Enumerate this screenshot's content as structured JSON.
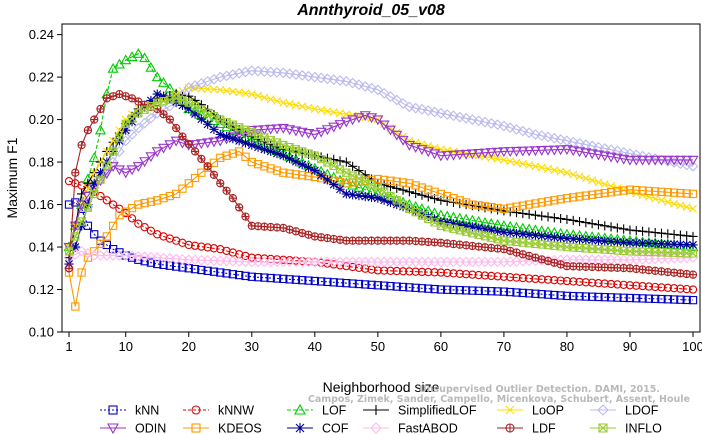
{
  "chart_data": {
    "type": "line",
    "title": "Annthyroid_05_v08",
    "xlabel": "Neighborhood size",
    "ylabel": "Maximum F1",
    "xlim": [
      1,
      100
    ],
    "ylim": [
      0.1,
      0.245
    ],
    "xticks": [
      1,
      10,
      20,
      30,
      40,
      50,
      60,
      70,
      80,
      90,
      100
    ],
    "yticks": [
      0.1,
      0.12,
      0.14,
      0.16,
      0.18,
      0.2,
      0.22,
      0.24
    ],
    "ytick_labels": [
      "0.10",
      "0.12",
      "0.14",
      "0.16",
      "0.18",
      "0.20",
      "0.22",
      "0.24"
    ],
    "grid": false,
    "legend_position": "bottom",
    "series": [
      {
        "name": "kNN",
        "color": "#0000cc",
        "marker": "square",
        "dash": "2,2",
        "points": [
          [
            1,
            0.16
          ],
          [
            2,
            0.161
          ],
          [
            3,
            0.158
          ],
          [
            4,
            0.15
          ],
          [
            5,
            0.146
          ],
          [
            6,
            0.143
          ],
          [
            8,
            0.139
          ],
          [
            10,
            0.136
          ],
          [
            12,
            0.134
          ],
          [
            15,
            0.132
          ],
          [
            20,
            0.13
          ],
          [
            25,
            0.128
          ],
          [
            30,
            0.126
          ],
          [
            40,
            0.124
          ],
          [
            50,
            0.122
          ],
          [
            60,
            0.12
          ],
          [
            70,
            0.119
          ],
          [
            80,
            0.117
          ],
          [
            90,
            0.116
          ],
          [
            100,
            0.115
          ]
        ]
      },
      {
        "name": "kNNW",
        "color": "#dd0000",
        "marker": "circle",
        "dash": "3,2",
        "points": [
          [
            1,
            0.171
          ],
          [
            2,
            0.17
          ],
          [
            3,
            0.169
          ],
          [
            5,
            0.166
          ],
          [
            7,
            0.162
          ],
          [
            10,
            0.156
          ],
          [
            12,
            0.151
          ],
          [
            15,
            0.146
          ],
          [
            20,
            0.141
          ],
          [
            25,
            0.139
          ],
          [
            30,
            0.135
          ],
          [
            40,
            0.133
          ],
          [
            50,
            0.129
          ],
          [
            60,
            0.128
          ],
          [
            70,
            0.126
          ],
          [
            80,
            0.124
          ],
          [
            90,
            0.122
          ],
          [
            100,
            0.12
          ]
        ]
      },
      {
        "name": "LOF",
        "color": "#00cc00",
        "marker": "triangle",
        "dash": "4,2",
        "points": [
          [
            1,
            0.14
          ],
          [
            2,
            0.15
          ],
          [
            3,
            0.16
          ],
          [
            4,
            0.172
          ],
          [
            5,
            0.182
          ],
          [
            6,
            0.195
          ],
          [
            7,
            0.212
          ],
          [
            8,
            0.224
          ],
          [
            10,
            0.228
          ],
          [
            12,
            0.231
          ],
          [
            13,
            0.229
          ],
          [
            15,
            0.22
          ],
          [
            18,
            0.212
          ],
          [
            20,
            0.205
          ],
          [
            25,
            0.198
          ],
          [
            30,
            0.19
          ],
          [
            35,
            0.184
          ],
          [
            40,
            0.177
          ],
          [
            45,
            0.17
          ],
          [
            50,
            0.165
          ],
          [
            55,
            0.16
          ],
          [
            60,
            0.155
          ],
          [
            70,
            0.15
          ],
          [
            80,
            0.146
          ],
          [
            90,
            0.143
          ],
          [
            100,
            0.14
          ]
        ]
      },
      {
        "name": "SimplifiedLOF",
        "color": "#000000",
        "marker": "plus",
        "dash": "",
        "points": [
          [
            1,
            0.135
          ],
          [
            2,
            0.15
          ],
          [
            3,
            0.165
          ],
          [
            5,
            0.175
          ],
          [
            7,
            0.185
          ],
          [
            10,
            0.198
          ],
          [
            12,
            0.205
          ],
          [
            15,
            0.21
          ],
          [
            18,
            0.212
          ],
          [
            20,
            0.211
          ],
          [
            22,
            0.207
          ],
          [
            25,
            0.2
          ],
          [
            30,
            0.192
          ],
          [
            35,
            0.186
          ],
          [
            40,
            0.183
          ],
          [
            45,
            0.18
          ],
          [
            50,
            0.17
          ],
          [
            55,
            0.166
          ],
          [
            60,
            0.162
          ],
          [
            70,
            0.157
          ],
          [
            80,
            0.153
          ],
          [
            90,
            0.148
          ],
          [
            100,
            0.145
          ]
        ]
      },
      {
        "name": "LoOP",
        "color": "#ffdd00",
        "marker": "x",
        "dash": "",
        "points": [
          [
            1,
            0.14
          ],
          [
            3,
            0.16
          ],
          [
            5,
            0.175
          ],
          [
            8,
            0.19
          ],
          [
            10,
            0.2
          ],
          [
            12,
            0.205
          ],
          [
            15,
            0.208
          ],
          [
            18,
            0.212
          ],
          [
            20,
            0.215
          ],
          [
            25,
            0.214
          ],
          [
            30,
            0.212
          ],
          [
            35,
            0.208
          ],
          [
            40,
            0.205
          ],
          [
            50,
            0.2
          ],
          [
            55,
            0.19
          ],
          [
            60,
            0.186
          ],
          [
            70,
            0.181
          ],
          [
            80,
            0.175
          ],
          [
            90,
            0.166
          ],
          [
            100,
            0.158
          ]
        ]
      },
      {
        "name": "LDOF",
        "color": "#bbbbee",
        "marker": "diamond",
        "dash": "",
        "points": [
          [
            1,
            0.13
          ],
          [
            3,
            0.15
          ],
          [
            5,
            0.168
          ],
          [
            8,
            0.18
          ],
          [
            10,
            0.19
          ],
          [
            12,
            0.196
          ],
          [
            15,
            0.203
          ],
          [
            18,
            0.208
          ],
          [
            20,
            0.215
          ],
          [
            25,
            0.22
          ],
          [
            30,
            0.223
          ],
          [
            35,
            0.222
          ],
          [
            40,
            0.22
          ],
          [
            45,
            0.218
          ],
          [
            50,
            0.214
          ],
          [
            55,
            0.206
          ],
          [
            60,
            0.203
          ],
          [
            65,
            0.2
          ],
          [
            70,
            0.197
          ],
          [
            75,
            0.193
          ],
          [
            80,
            0.19
          ],
          [
            90,
            0.184
          ],
          [
            100,
            0.178
          ]
        ]
      },
      {
        "name": "ODIN",
        "color": "#9933cc",
        "marker": "triangle-down",
        "dash": "",
        "points": [
          [
            1,
            0.14
          ],
          [
            3,
            0.16
          ],
          [
            5,
            0.168
          ],
          [
            8,
            0.178
          ],
          [
            10,
            0.175
          ],
          [
            12,
            0.178
          ],
          [
            15,
            0.185
          ],
          [
            18,
            0.19
          ],
          [
            20,
            0.188
          ],
          [
            25,
            0.19
          ],
          [
            30,
            0.195
          ],
          [
            35,
            0.196
          ],
          [
            40,
            0.193
          ],
          [
            45,
            0.199
          ],
          [
            48,
            0.202
          ],
          [
            50,
            0.2
          ],
          [
            55,
            0.188
          ],
          [
            60,
            0.183
          ],
          [
            70,
            0.185
          ],
          [
            80,
            0.186
          ],
          [
            90,
            0.181
          ],
          [
            100,
            0.181
          ]
        ]
      },
      {
        "name": "KDEOS",
        "color": "#ff9900",
        "marker": "square",
        "dash": "",
        "points": [
          [
            1,
            0.128
          ],
          [
            2,
            0.112
          ],
          [
            3,
            0.128
          ],
          [
            4,
            0.135
          ],
          [
            5,
            0.138
          ],
          [
            7,
            0.145
          ],
          [
            9,
            0.155
          ],
          [
            12,
            0.16
          ],
          [
            15,
            0.162
          ],
          [
            18,
            0.165
          ],
          [
            20,
            0.17
          ],
          [
            22,
            0.175
          ],
          [
            25,
            0.182
          ],
          [
            28,
            0.185
          ],
          [
            30,
            0.18
          ],
          [
            35,
            0.175
          ],
          [
            40,
            0.173
          ],
          [
            45,
            0.17
          ],
          [
            50,
            0.172
          ],
          [
            55,
            0.17
          ],
          [
            60,
            0.165
          ],
          [
            65,
            0.16
          ],
          [
            70,
            0.158
          ],
          [
            80,
            0.163
          ],
          [
            90,
            0.167
          ],
          [
            100,
            0.165
          ]
        ]
      },
      {
        "name": "COF",
        "color": "#000099",
        "marker": "asterisk",
        "dash": "",
        "points": [
          [
            1,
            0.132
          ],
          [
            2,
            0.14
          ],
          [
            3,
            0.15
          ],
          [
            4,
            0.16
          ],
          [
            5,
            0.17
          ],
          [
            7,
            0.18
          ],
          [
            10,
            0.195
          ],
          [
            12,
            0.203
          ],
          [
            15,
            0.212
          ],
          [
            17,
            0.21
          ],
          [
            20,
            0.205
          ],
          [
            25,
            0.193
          ],
          [
            30,
            0.188
          ],
          [
            35,
            0.183
          ],
          [
            40,
            0.176
          ],
          [
            45,
            0.165
          ],
          [
            50,
            0.163
          ],
          [
            55,
            0.158
          ],
          [
            60,
            0.152
          ],
          [
            70,
            0.147
          ],
          [
            80,
            0.144
          ],
          [
            90,
            0.142
          ],
          [
            100,
            0.141
          ]
        ]
      },
      {
        "name": "FastABOD",
        "color": "#ffbbee",
        "marker": "diamond",
        "dash": "",
        "points": [
          [
            1,
            0.135
          ],
          [
            3,
            0.138
          ],
          [
            5,
            0.136
          ],
          [
            10,
            0.136
          ],
          [
            15,
            0.135
          ],
          [
            20,
            0.134
          ],
          [
            30,
            0.133
          ],
          [
            40,
            0.133
          ],
          [
            50,
            0.133
          ],
          [
            60,
            0.133
          ],
          [
            70,
            0.133
          ],
          [
            80,
            0.134
          ],
          [
            90,
            0.134
          ],
          [
            100,
            0.135
          ]
        ]
      },
      {
        "name": "LDF",
        "color": "#aa2222",
        "marker": "circle-plus",
        "dash": "",
        "points": [
          [
            1,
            0.13
          ],
          [
            2,
            0.175
          ],
          [
            3,
            0.188
          ],
          [
            4,
            0.195
          ],
          [
            5,
            0.2
          ],
          [
            7,
            0.21
          ],
          [
            9,
            0.212
          ],
          [
            11,
            0.21
          ],
          [
            13,
            0.207
          ],
          [
            15,
            0.205
          ],
          [
            17,
            0.2
          ],
          [
            19,
            0.192
          ],
          [
            21,
            0.185
          ],
          [
            23,
            0.178
          ],
          [
            25,
            0.17
          ],
          [
            27,
            0.163
          ],
          [
            30,
            0.15
          ],
          [
            35,
            0.149
          ],
          [
            40,
            0.145
          ],
          [
            45,
            0.143
          ],
          [
            50,
            0.143
          ],
          [
            55,
            0.143
          ],
          [
            60,
            0.142
          ],
          [
            70,
            0.139
          ],
          [
            80,
            0.131
          ],
          [
            90,
            0.13
          ],
          [
            100,
            0.127
          ]
        ]
      },
      {
        "name": "INFLO",
        "color": "#99cc33",
        "marker": "box-x",
        "dash": "",
        "points": [
          [
            1,
            0.138
          ],
          [
            2,
            0.145
          ],
          [
            3,
            0.152
          ],
          [
            5,
            0.165
          ],
          [
            8,
            0.185
          ],
          [
            10,
            0.198
          ],
          [
            12,
            0.203
          ],
          [
            15,
            0.208
          ],
          [
            18,
            0.21
          ],
          [
            20,
            0.208
          ],
          [
            25,
            0.2
          ],
          [
            30,
            0.194
          ],
          [
            35,
            0.188
          ],
          [
            40,
            0.183
          ],
          [
            45,
            0.175
          ],
          [
            50,
            0.168
          ],
          [
            55,
            0.158
          ],
          [
            60,
            0.15
          ],
          [
            70,
            0.143
          ],
          [
            80,
            0.14
          ],
          [
            90,
            0.138
          ],
          [
            100,
            0.137
          ]
        ]
      }
    ]
  },
  "watermark": {
    "line1": "Unsupervised Outlier Detection. DAMI, 2015.",
    "line2": "Campos, Zimek, Sander, Campello, Micenkova, Schubert, Assent, Houle"
  }
}
